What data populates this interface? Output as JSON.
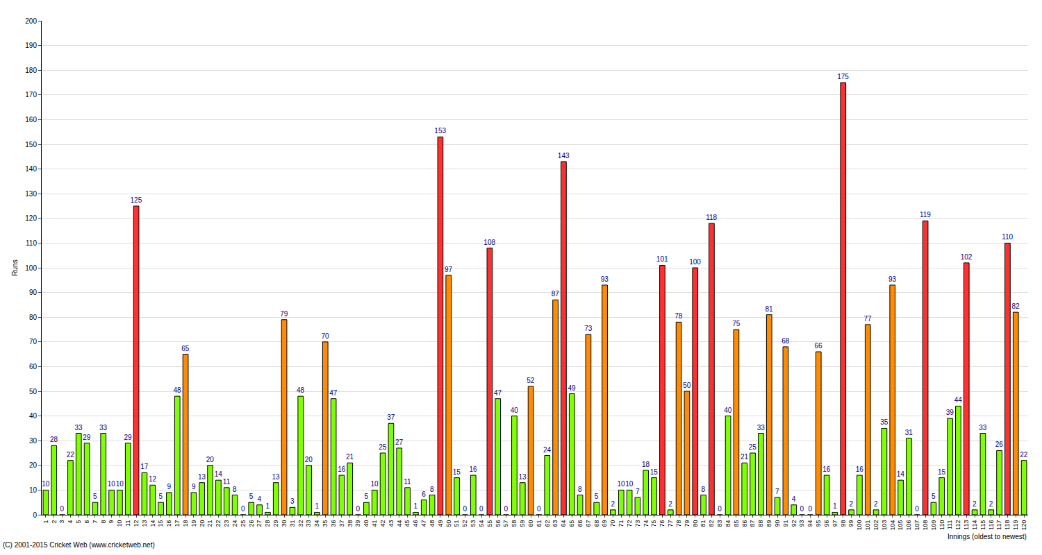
{
  "chart_data": {
    "type": "bar",
    "y_label": "Runs",
    "x_label": "Innings (oldest to newest)",
    "annotations": [
      "(C) 2001-2015 Cricket Web (www.cricketweb.net)"
    ],
    "categories": [
      "1",
      "2",
      "3",
      "4",
      "5",
      "6",
      "7",
      "8",
      "9",
      "10",
      "11",
      "12",
      "13",
      "14",
      "15",
      "16",
      "17",
      "18",
      "19",
      "20",
      "21",
      "22",
      "23",
      "24",
      "25",
      "26",
      "27",
      "28",
      "29",
      "30",
      "31",
      "32",
      "33",
      "34",
      "35",
      "36",
      "37",
      "38",
      "39",
      "40",
      "41",
      "42",
      "43",
      "44",
      "45",
      "46",
      "47",
      "48",
      "49",
      "50",
      "51",
      "52",
      "53",
      "54",
      "55",
      "56",
      "57",
      "58",
      "59",
      "60",
      "61",
      "62",
      "63",
      "64",
      "65",
      "66",
      "67",
      "68",
      "69",
      "70",
      "71",
      "72",
      "73",
      "74",
      "75",
      "76",
      "77",
      "78",
      "79",
      "80",
      "81",
      "82",
      "83",
      "84",
      "85",
      "86",
      "87",
      "88",
      "89",
      "90",
      "91",
      "92",
      "93",
      "94",
      "95",
      "96",
      "97",
      "98",
      "99",
      "100",
      "101",
      "102",
      "103",
      "104",
      "105",
      "106",
      "107",
      "108",
      "109",
      "110",
      "111",
      "112",
      "113",
      "114",
      "115",
      "116",
      "117",
      "118",
      "119",
      "120"
    ],
    "values": [
      10,
      28,
      0,
      22,
      33,
      29,
      5,
      33,
      10,
      10,
      29,
      125,
      17,
      12,
      5,
      9,
      48,
      65,
      9,
      13,
      20,
      14,
      11,
      8,
      0,
      5,
      4,
      1,
      13,
      79,
      3,
      48,
      20,
      1,
      70,
      47,
      16,
      21,
      0,
      5,
      10,
      25,
      37,
      27,
      11,
      1,
      6,
      8,
      153,
      97,
      15,
      0,
      16,
      0,
      108,
      47,
      0,
      40,
      13,
      52,
      0,
      24,
      87,
      143,
      49,
      8,
      73,
      5,
      93,
      2,
      10,
      10,
      7,
      18,
      15,
      101,
      2,
      78,
      50,
      100,
      8,
      118,
      0,
      40,
      75,
      21,
      25,
      33,
      81,
      7,
      68,
      4,
      0,
      0,
      66,
      16,
      1,
      175,
      2,
      16,
      77,
      2,
      35,
      93,
      14,
      31,
      0,
      119,
      5,
      15,
      39,
      44,
      102,
      2,
      33,
      2,
      26,
      110,
      82,
      22
    ],
    "colors": [
      "#80ff00",
      "#80ff00",
      "#80ff00",
      "#80ff00",
      "#80ff00",
      "#80ff00",
      "#80ff00",
      "#80ff00",
      "#80ff00",
      "#80ff00",
      "#80ff00",
      "#ff3030",
      "#80ff00",
      "#80ff00",
      "#80ff00",
      "#80ff00",
      "#80ff00",
      "#ff8c00",
      "#80ff00",
      "#80ff00",
      "#80ff00",
      "#80ff00",
      "#80ff00",
      "#80ff00",
      "#80ff00",
      "#80ff00",
      "#80ff00",
      "#80ff00",
      "#80ff00",
      "#ff8c00",
      "#80ff00",
      "#80ff00",
      "#80ff00",
      "#80ff00",
      "#ff8c00",
      "#80ff00",
      "#80ff00",
      "#80ff00",
      "#80ff00",
      "#80ff00",
      "#80ff00",
      "#80ff00",
      "#80ff00",
      "#80ff00",
      "#80ff00",
      "#80ff00",
      "#80ff00",
      "#80ff00",
      "#ff3030",
      "#ff8c00",
      "#80ff00",
      "#80ff00",
      "#80ff00",
      "#80ff00",
      "#ff3030",
      "#80ff00",
      "#80ff00",
      "#80ff00",
      "#80ff00",
      "#ff8c00",
      "#80ff00",
      "#80ff00",
      "#ff8c00",
      "#ff3030",
      "#80ff00",
      "#80ff00",
      "#ff8c00",
      "#80ff00",
      "#ff8c00",
      "#80ff00",
      "#80ff00",
      "#80ff00",
      "#80ff00",
      "#80ff00",
      "#80ff00",
      "#ff3030",
      "#80ff00",
      "#ff8c00",
      "#ff8c00",
      "#ff3030",
      "#80ff00",
      "#ff3030",
      "#80ff00",
      "#80ff00",
      "#ff8c00",
      "#80ff00",
      "#80ff00",
      "#80ff00",
      "#ff8c00",
      "#80ff00",
      "#ff8c00",
      "#80ff00",
      "#80ff00",
      "#80ff00",
      "#ff8c00",
      "#80ff00",
      "#80ff00",
      "#ff3030",
      "#80ff00",
      "#80ff00",
      "#ff8c00",
      "#80ff00",
      "#80ff00",
      "#ff8c00",
      "#80ff00",
      "#80ff00",
      "#80ff00",
      "#ff3030",
      "#80ff00",
      "#80ff00",
      "#80ff00",
      "#80ff00",
      "#ff3030",
      "#80ff00",
      "#80ff00",
      "#80ff00",
      "#80ff00",
      "#ff3030",
      "#ff8c00",
      "#80ff00"
    ],
    "ylim": [
      0,
      200
    ],
    "yticks": [
      0,
      10,
      20,
      30,
      40,
      50,
      60,
      70,
      80,
      90,
      100,
      110,
      120,
      130,
      140,
      150,
      160,
      170,
      180,
      190,
      200
    ],
    "grid": true,
    "data_labels": true
  }
}
